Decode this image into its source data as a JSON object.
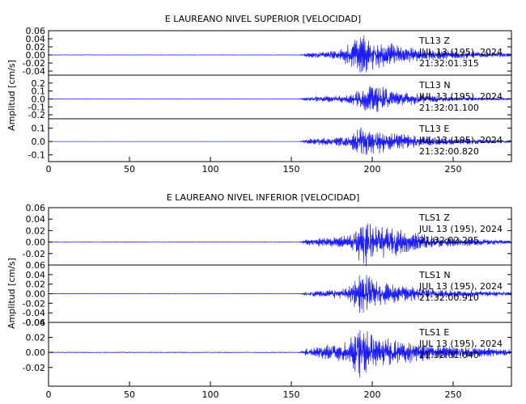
{
  "chart_data": [
    {
      "type": "line",
      "title": "E LAUREANO NIVEL SUPERIOR [VELOCIDAD]",
      "ylabel": "Amplitud [cm/s]",
      "xlim": [
        0,
        286
      ],
      "x_ticks": [
        0,
        50,
        100,
        150,
        200,
        250
      ],
      "line_color": "#1a1aff",
      "traces": [
        {
          "name": "Z",
          "ylim": [
            -0.05,
            0.06
          ],
          "y_ticks": [
            "0.06",
            "0.04",
            "0.02",
            "0.00",
            "-0.02",
            "-0.04"
          ],
          "y_tick_values": [
            0.06,
            0.04,
            0.02,
            0.0,
            -0.02,
            -0.04
          ],
          "annotation": [
            "TL13   Z",
            "JUL  13 (195), 2024",
            "21:32:01.315"
          ],
          "peak_amplitude": 0.055,
          "series": [
            {
              "x": 0,
              "y": 0.0
            },
            {
              "x": 155,
              "y": 0.0
            },
            {
              "x": 160,
              "y": 0.006
            },
            {
              "x": 180,
              "y": 0.012
            },
            {
              "x": 193,
              "y": 0.055
            },
            {
              "x": 200,
              "y": 0.04
            },
            {
              "x": 230,
              "y": 0.015
            },
            {
              "x": 286,
              "y": 0.005
            }
          ]
        },
        {
          "name": "N",
          "ylim": [
            -0.25,
            0.3
          ],
          "y_ticks": [
            "0.2",
            "0.1",
            "0.0",
            "-0.1",
            "-0.2"
          ],
          "y_tick_values": [
            0.2,
            0.1,
            0.0,
            -0.1,
            -0.2
          ],
          "annotation": [
            "TL13   N",
            "JUL  13 (195), 2024",
            "21:32:01.100"
          ],
          "peak_amplitude": 0.2,
          "series": [
            {
              "x": 0,
              "y": 0.0
            },
            {
              "x": 155,
              "y": 0.0
            },
            {
              "x": 160,
              "y": 0.03
            },
            {
              "x": 185,
              "y": 0.06
            },
            {
              "x": 200,
              "y": 0.2
            },
            {
              "x": 215,
              "y": 0.1
            },
            {
              "x": 250,
              "y": 0.03
            },
            {
              "x": 286,
              "y": 0.01
            }
          ]
        },
        {
          "name": "E",
          "ylim": [
            -0.15,
            0.17
          ],
          "y_ticks": [
            "0.1",
            "0.0",
            "-0.1"
          ],
          "y_tick_values": [
            0.1,
            0.0,
            -0.1
          ],
          "annotation": [
            "TL13   E",
            "JUL  13 (195), 2024",
            "21:32:00.820"
          ],
          "peak_amplitude": 0.13,
          "series": [
            {
              "x": 0,
              "y": 0.0
            },
            {
              "x": 155,
              "y": 0.0
            },
            {
              "x": 160,
              "y": 0.02
            },
            {
              "x": 185,
              "y": 0.04
            },
            {
              "x": 195,
              "y": 0.13
            },
            {
              "x": 210,
              "y": 0.07
            },
            {
              "x": 240,
              "y": 0.03
            },
            {
              "x": 286,
              "y": 0.01
            }
          ]
        }
      ]
    },
    {
      "type": "line",
      "title": "E LAUREANO NIVEL INFERIOR [VELOCIDAD]",
      "ylabel": "Amplitud [cm/s]",
      "xlim": [
        0,
        286
      ],
      "x_ticks": [
        0,
        50,
        100,
        150,
        200,
        250
      ],
      "line_color": "#1a1aff",
      "traces": [
        {
          "name": "Z",
          "ylim": [
            -0.04,
            0.06
          ],
          "y_ticks": [
            "0.06",
            "0.04",
            "0.02",
            "0.00",
            "-0.02"
          ],
          "y_tick_values": [
            0.06,
            0.04,
            0.02,
            0.0,
            -0.02
          ],
          "annotation": [
            "TLS1   Z",
            "JUL  13 (195), 2024",
            "21:32:02.205"
          ],
          "peak_amplitude": 0.045,
          "series": [
            {
              "x": 0,
              "y": 0.0
            },
            {
              "x": 155,
              "y": 0.0
            },
            {
              "x": 160,
              "y": 0.006
            },
            {
              "x": 185,
              "y": 0.012
            },
            {
              "x": 195,
              "y": 0.045
            },
            {
              "x": 205,
              "y": 0.03
            },
            {
              "x": 240,
              "y": 0.01
            },
            {
              "x": 286,
              "y": 0.003
            }
          ]
        },
        {
          "name": "N",
          "ylim": [
            -0.06,
            0.06
          ],
          "y_ticks": [
            "0.06",
            "0.04",
            "0.02",
            "0.00",
            "-0.02",
            "-0.04",
            "-0.06"
          ],
          "y_tick_values": [
            0.06,
            0.04,
            0.02,
            0.0,
            -0.02,
            -0.04,
            -0.06
          ],
          "annotation": [
            "TLS1   N",
            "JUL  13 (195), 2024",
            "21:32:00.910"
          ],
          "peak_amplitude": 0.05,
          "series": [
            {
              "x": 0,
              "y": 0.0
            },
            {
              "x": 155,
              "y": 0.0
            },
            {
              "x": 160,
              "y": 0.005
            },
            {
              "x": 185,
              "y": 0.012
            },
            {
              "x": 192,
              "y": 0.05
            },
            {
              "x": 205,
              "y": 0.025
            },
            {
              "x": 240,
              "y": 0.01
            },
            {
              "x": 286,
              "y": 0.004
            }
          ]
        },
        {
          "name": "E",
          "ylim": [
            -0.045,
            0.04
          ],
          "y_ticks": [
            "0.04",
            "0.02",
            "0.00",
            "-0.02"
          ],
          "y_tick_values": [
            0.04,
            0.02,
            0.0,
            -0.02
          ],
          "annotation": [
            "TLS1   E",
            "JUL  13 (195), 2024",
            "21:32:01.040"
          ],
          "peak_amplitude": 0.038,
          "series": [
            {
              "x": 0,
              "y": 0.0
            },
            {
              "x": 155,
              "y": 0.0
            },
            {
              "x": 160,
              "y": 0.006
            },
            {
              "x": 185,
              "y": 0.015
            },
            {
              "x": 190,
              "y": 0.038
            },
            {
              "x": 205,
              "y": 0.02
            },
            {
              "x": 240,
              "y": 0.01
            },
            {
              "x": 286,
              "y": 0.004
            }
          ]
        }
      ]
    }
  ]
}
